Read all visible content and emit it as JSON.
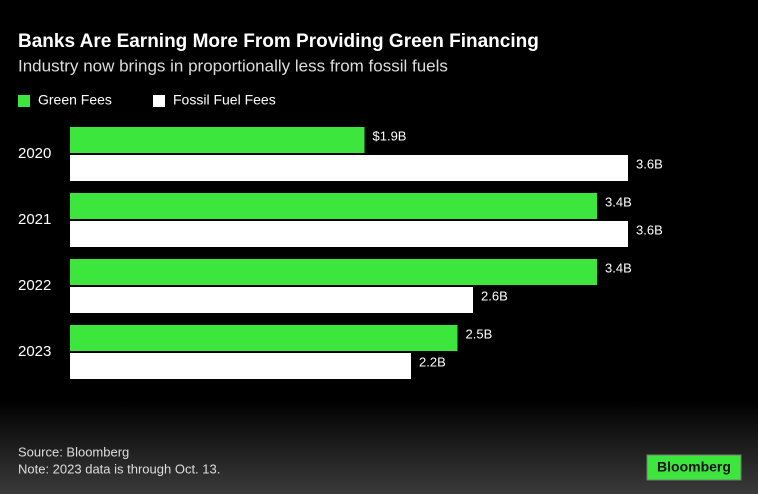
{
  "chart_data": {
    "type": "barh",
    "title": "Banks Are Earning More From Providing Green Financing",
    "subtitle": "Industry now brings in proportionally less from fossil fuels",
    "categories": [
      "2020",
      "2021",
      "2022",
      "2023"
    ],
    "series": [
      {
        "name": "Green Fees",
        "color": "#3de63d",
        "values": [
          1.9,
          3.4,
          3.4,
          2.5
        ],
        "value_labels": [
          "$1.9B",
          "3.4B",
          "3.4B",
          "2.5B"
        ]
      },
      {
        "name": "Fossil Fuel Fees",
        "color": "#ffffff",
        "values": [
          3.6,
          3.6,
          2.6,
          2.2
        ],
        "value_labels": [
          "3.6B",
          "3.6B",
          "2.6B",
          "2.2B"
        ]
      }
    ],
    "source": "Source: Bloomberg",
    "note": "Note: 2023 data is through Oct. 13.",
    "logo": "Bloomberg"
  }
}
